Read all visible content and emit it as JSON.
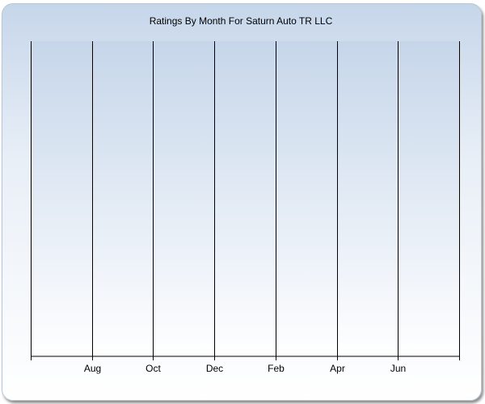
{
  "chart_data": {
    "type": "bar",
    "title": "Ratings By Month For Saturn Auto TR LLC",
    "xlabel": "",
    "ylabel": "",
    "x_tick_labels": [
      "",
      "Aug",
      "Oct",
      "Dec",
      "Feb",
      "Apr",
      "Jun",
      ""
    ],
    "categories": [],
    "values": [],
    "grid": "vertical",
    "legend": "none"
  },
  "colors": {
    "gradient_top": "#c6d6ea",
    "gradient_bottom": "#ffffff",
    "grid_line": "#000000"
  }
}
